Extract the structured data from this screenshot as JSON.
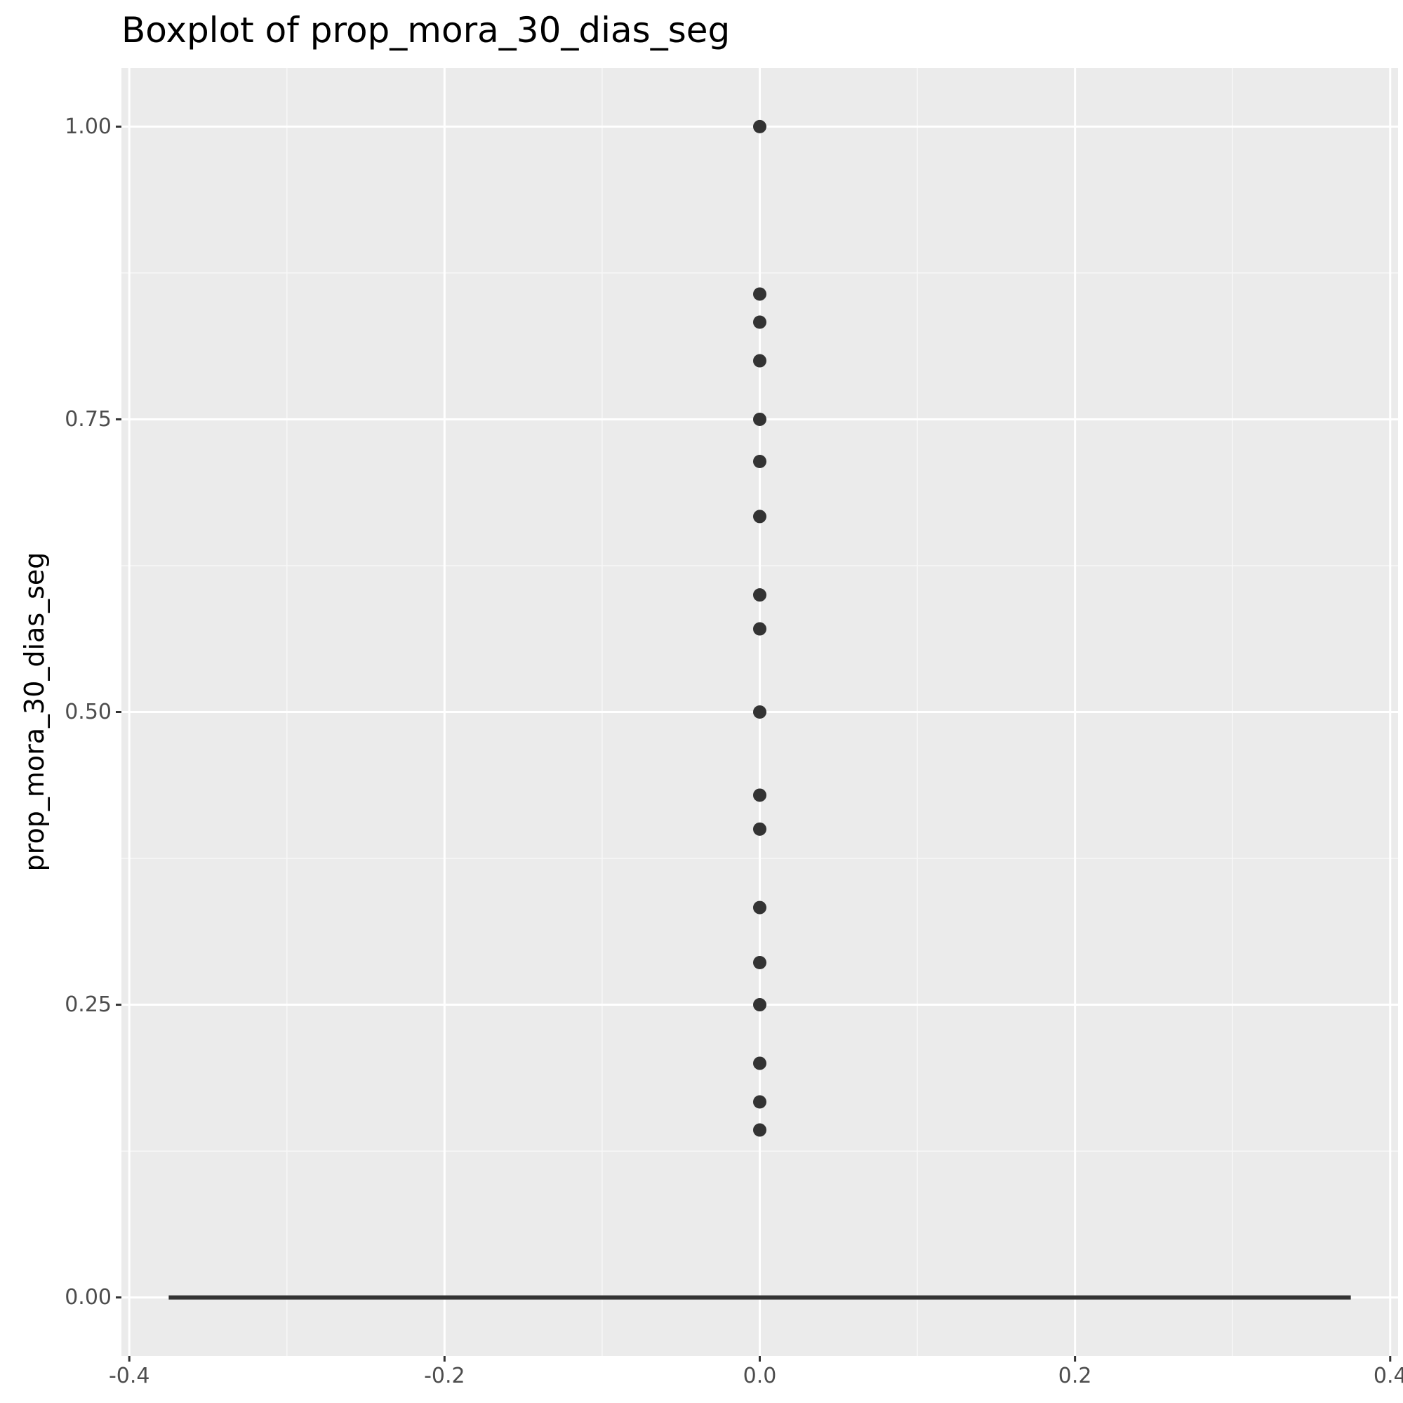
{
  "colors": {
    "panel_background": "#ebebeb",
    "grid_major": "#ffffff",
    "grid_minor": "#f7f7f7",
    "marks": "#333333",
    "tick_text": "#4d4d4d",
    "tick_marks": "#333333"
  },
  "chart_data": {
    "type": "boxplot",
    "title": "Boxplot of prop_mora_30_dias_seg",
    "xlabel": "",
    "ylabel": "prop_mora_30_dias_seg",
    "xlim": [
      -0.405,
      0.405
    ],
    "ylim": [
      -0.05,
      1.05
    ],
    "x_ticks": [
      -0.4,
      -0.2,
      0.0,
      0.2,
      0.4
    ],
    "x_tick_labels": [
      "-0.4",
      "-0.2",
      "0.0",
      "0.2",
      "0.4"
    ],
    "y_ticks": [
      0.0,
      0.25,
      0.5,
      0.75,
      1.0
    ],
    "y_tick_labels": [
      "0.00",
      "0.25",
      "0.50",
      "0.75",
      "1.00"
    ],
    "grid": true,
    "box": {
      "x": 0.0,
      "xmin": -0.375,
      "xmax": 0.375,
      "q1": 0.0,
      "median": 0.0,
      "q3": 0.0,
      "whisker_low": 0.0,
      "whisker_high": 0.0
    },
    "outliers": [
      1.0,
      0.857,
      0.833,
      0.8,
      0.75,
      0.714,
      0.667,
      0.6,
      0.571,
      0.5,
      0.429,
      0.4,
      0.333,
      0.286,
      0.25,
      0.2,
      0.167,
      0.143
    ]
  }
}
